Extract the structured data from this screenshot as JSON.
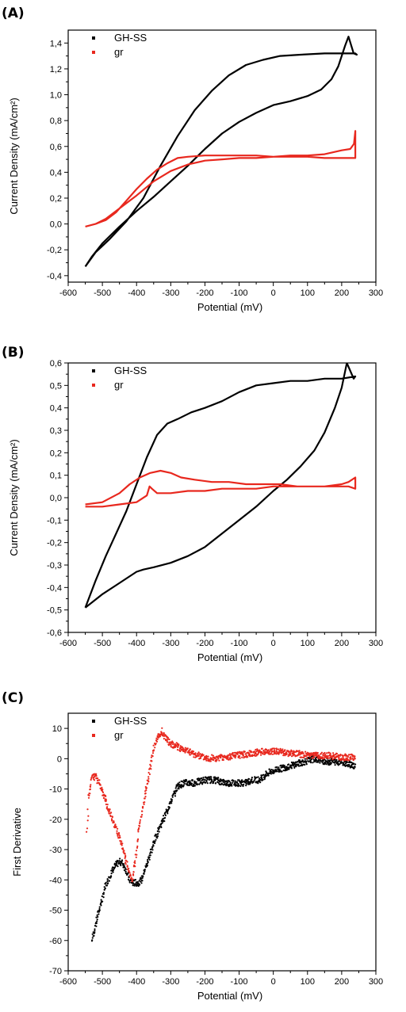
{
  "chart_data": [
    {
      "panel_label": "(A)",
      "type": "line",
      "xlabel": "Potential (mV)",
      "ylabel": "Current Density (mA/cm²)",
      "xlim": [
        -600,
        300
      ],
      "ylim": [
        -0.45,
        1.5
      ],
      "x_ticks": [
        -600,
        -500,
        -400,
        -300,
        -200,
        -100,
        0,
        100,
        200,
        300
      ],
      "y_ticks": [
        -0.4,
        -0.2,
        0.0,
        0.2,
        0.4,
        0.6,
        0.8,
        1.0,
        1.2,
        1.4
      ],
      "y_tick_labels": [
        "-0,4",
        "-0,2",
        "0,0",
        "0,2",
        "0,4",
        "0,6",
        "0,8",
        "1,0",
        "1,2",
        "1,4"
      ],
      "legend_placement": "top-left",
      "series": [
        {
          "name": "GH-SS",
          "color": "#000000",
          "points": [
            [
              -550,
              -0.33
            ],
            [
              -520,
              -0.22
            ],
            [
              -480,
              -0.12
            ],
            [
              -430,
              0.02
            ],
            [
              -380,
              0.2
            ],
            [
              -330,
              0.45
            ],
            [
              -280,
              0.68
            ],
            [
              -230,
              0.88
            ],
            [
              -180,
              1.03
            ],
            [
              -130,
              1.15
            ],
            [
              -80,
              1.23
            ],
            [
              -30,
              1.27
            ],
            [
              20,
              1.3
            ],
            [
              80,
              1.31
            ],
            [
              150,
              1.32
            ],
            [
              200,
              1.32
            ],
            [
              240,
              1.32
            ],
            [
              244,
              1.31
            ],
            [
              235,
              1.32
            ],
            [
              220,
              1.45
            ],
            [
              210,
              1.38
            ],
            [
              190,
              1.22
            ],
            [
              170,
              1.12
            ],
            [
              140,
              1.04
            ],
            [
              100,
              0.99
            ],
            [
              50,
              0.95
            ],
            [
              0,
              0.92
            ],
            [
              -50,
              0.86
            ],
            [
              -100,
              0.79
            ],
            [
              -150,
              0.7
            ],
            [
              -200,
              0.58
            ],
            [
              -250,
              0.45
            ],
            [
              -300,
              0.33
            ],
            [
              -350,
              0.21
            ],
            [
              -400,
              0.1
            ],
            [
              -450,
              -0.02
            ],
            [
              -500,
              -0.15
            ],
            [
              -530,
              -0.25
            ],
            [
              -550,
              -0.33
            ]
          ]
        },
        {
          "name": "gr",
          "color": "#e8281e",
          "points": [
            [
              -550,
              -0.02
            ],
            [
              -520,
              0.0
            ],
            [
              -490,
              0.03
            ],
            [
              -460,
              0.09
            ],
            [
              -430,
              0.18
            ],
            [
              -400,
              0.27
            ],
            [
              -370,
              0.35
            ],
            [
              -340,
              0.42
            ],
            [
              -310,
              0.47
            ],
            [
              -280,
              0.51
            ],
            [
              -250,
              0.52
            ],
            [
              -200,
              0.53
            ],
            [
              -150,
              0.53
            ],
            [
              -100,
              0.53
            ],
            [
              -50,
              0.53
            ],
            [
              0,
              0.52
            ],
            [
              50,
              0.52
            ],
            [
              100,
              0.52
            ],
            [
              150,
              0.51
            ],
            [
              200,
              0.51
            ],
            [
              240,
              0.51
            ],
            [
              240,
              0.72
            ],
            [
              236,
              0.62
            ],
            [
              225,
              0.58
            ],
            [
              200,
              0.57
            ],
            [
              150,
              0.54
            ],
            [
              100,
              0.53
            ],
            [
              50,
              0.53
            ],
            [
              0,
              0.52
            ],
            [
              -50,
              0.51
            ],
            [
              -100,
              0.51
            ],
            [
              -150,
              0.5
            ],
            [
              -200,
              0.49
            ],
            [
              -250,
              0.46
            ],
            [
              -300,
              0.41
            ],
            [
              -350,
              0.33
            ],
            [
              -400,
              0.22
            ],
            [
              -450,
              0.12
            ],
            [
              -490,
              0.04
            ],
            [
              -520,
              0.0
            ],
            [
              -550,
              -0.02
            ]
          ]
        }
      ]
    },
    {
      "panel_label": "(B)",
      "type": "line",
      "xlabel": "Potential (mV)",
      "ylabel": "Current Density (mA/cm²)",
      "xlim": [
        -600,
        300
      ],
      "ylim": [
        -0.6,
        0.6
      ],
      "x_ticks": [
        -600,
        -500,
        -400,
        -300,
        -200,
        -100,
        0,
        100,
        200,
        300
      ],
      "y_ticks": [
        -0.6,
        -0.5,
        -0.4,
        -0.3,
        -0.2,
        -0.1,
        0.0,
        0.1,
        0.2,
        0.3,
        0.4,
        0.5,
        0.6
      ],
      "y_tick_labels": [
        "-0,6",
        "-0,5",
        "-0,4",
        "-0,3",
        "-0,2",
        "-0,1",
        "0,0",
        "0,1",
        "0,2",
        "0,3",
        "0,4",
        "0,5",
        "0,6"
      ],
      "legend_placement": "top-left",
      "series": [
        {
          "name": "GH-SS",
          "color": "#000000",
          "points": [
            [
              -550,
              -0.49
            ],
            [
              -520,
              -0.37
            ],
            [
              -490,
              -0.26
            ],
            [
              -460,
              -0.16
            ],
            [
              -430,
              -0.06
            ],
            [
              -400,
              0.06
            ],
            [
              -370,
              0.18
            ],
            [
              -340,
              0.28
            ],
            [
              -310,
              0.33
            ],
            [
              -280,
              0.35
            ],
            [
              -240,
              0.38
            ],
            [
              -200,
              0.4
            ],
            [
              -150,
              0.43
            ],
            [
              -100,
              0.47
            ],
            [
              -50,
              0.5
            ],
            [
              0,
              0.51
            ],
            [
              50,
              0.52
            ],
            [
              100,
              0.52
            ],
            [
              150,
              0.53
            ],
            [
              200,
              0.53
            ],
            [
              240,
              0.54
            ],
            [
              235,
              0.53
            ],
            [
              215,
              0.6
            ],
            [
              200,
              0.49
            ],
            [
              180,
              0.4
            ],
            [
              150,
              0.29
            ],
            [
              120,
              0.21
            ],
            [
              80,
              0.14
            ],
            [
              40,
              0.08
            ],
            [
              0,
              0.03
            ],
            [
              -50,
              -0.04
            ],
            [
              -100,
              -0.1
            ],
            [
              -150,
              -0.16
            ],
            [
              -200,
              -0.22
            ],
            [
              -250,
              -0.26
            ],
            [
              -300,
              -0.29
            ],
            [
              -350,
              -0.31
            ],
            [
              -380,
              -0.32
            ],
            [
              -400,
              -0.33
            ],
            [
              -430,
              -0.36
            ],
            [
              -460,
              -0.39
            ],
            [
              -500,
              -0.43
            ],
            [
              -550,
              -0.49
            ]
          ]
        },
        {
          "name": "gr",
          "color": "#e8281e",
          "points": [
            [
              -550,
              -0.03
            ],
            [
              -500,
              -0.02
            ],
            [
              -450,
              0.02
            ],
            [
              -420,
              0.06
            ],
            [
              -390,
              0.09
            ],
            [
              -360,
              0.11
            ],
            [
              -330,
              0.12
            ],
            [
              -300,
              0.11
            ],
            [
              -270,
              0.09
            ],
            [
              -230,
              0.08
            ],
            [
              -180,
              0.07
            ],
            [
              -130,
              0.07
            ],
            [
              -80,
              0.06
            ],
            [
              -30,
              0.06
            ],
            [
              20,
              0.06
            ],
            [
              70,
              0.05
            ],
            [
              120,
              0.05
            ],
            [
              170,
              0.05
            ],
            [
              220,
              0.05
            ],
            [
              240,
              0.04
            ],
            [
              240,
              0.09
            ],
            [
              220,
              0.07
            ],
            [
              200,
              0.06
            ],
            [
              150,
              0.05
            ],
            [
              100,
              0.05
            ],
            [
              50,
              0.05
            ],
            [
              0,
              0.05
            ],
            [
              -50,
              0.04
            ],
            [
              -100,
              0.04
            ],
            [
              -150,
              0.04
            ],
            [
              -200,
              0.03
            ],
            [
              -250,
              0.03
            ],
            [
              -300,
              0.02
            ],
            [
              -340,
              0.02
            ],
            [
              -355,
              0.04
            ],
            [
              -362,
              0.05
            ],
            [
              -370,
              0.01
            ],
            [
              -400,
              -0.02
            ],
            [
              -450,
              -0.03
            ],
            [
              -500,
              -0.04
            ],
            [
              -550,
              -0.04
            ]
          ]
        }
      ]
    },
    {
      "panel_label": "(C)",
      "type": "scatter",
      "xlabel": "Potential (mV)",
      "ylabel": "First Derivative",
      "xlim": [
        -600,
        300
      ],
      "ylim": [
        -70,
        15
      ],
      "x_ticks": [
        -600,
        -500,
        -400,
        -300,
        -200,
        -100,
        0,
        100,
        200,
        300
      ],
      "y_ticks": [
        -70,
        -60,
        -50,
        -40,
        -30,
        -20,
        -10,
        0,
        10
      ],
      "y_tick_labels": [
        "-70",
        "-60",
        "-50",
        "-40",
        "-30",
        "-20",
        "-10",
        "0",
        "10"
      ],
      "legend_placement": "top-left",
      "series": [
        {
          "name": "GH-SS",
          "color": "#000000",
          "points": [
            [
              -530,
              -60
            ],
            [
              -520,
              -55
            ],
            [
              -505,
              -48
            ],
            [
              -490,
              -42
            ],
            [
              -475,
              -38
            ],
            [
              -460,
              -35
            ],
            [
              -448,
              -34
            ],
            [
              -440,
              -34.5
            ],
            [
              -430,
              -37
            ],
            [
              -420,
              -40
            ],
            [
              -410,
              -41
            ],
            [
              -395,
              -41
            ],
            [
              -385,
              -40
            ],
            [
              -370,
              -35
            ],
            [
              -350,
              -28
            ],
            [
              -330,
              -22
            ],
            [
              -310,
              -17
            ],
            [
              -295,
              -13
            ],
            [
              -280,
              -9
            ],
            [
              -260,
              -8
            ],
            [
              -230,
              -8
            ],
            [
              -200,
              -7
            ],
            [
              -170,
              -7
            ],
            [
              -140,
              -8
            ],
            [
              -110,
              -8
            ],
            [
              -80,
              -8
            ],
            [
              -60,
              -7
            ],
            [
              -40,
              -7
            ],
            [
              -20,
              -5
            ],
            [
              0,
              -4
            ],
            [
              30,
              -3
            ],
            [
              60,
              -2
            ],
            [
              90,
              -1
            ],
            [
              120,
              0
            ],
            [
              160,
              -1
            ],
            [
              200,
              -1
            ],
            [
              230,
              -2
            ],
            [
              240,
              -3
            ]
          ]
        },
        {
          "name": "gr",
          "color": "#e8281e",
          "points": [
            [
              -545,
              -24
            ],
            [
              -540,
              -12
            ],
            [
              -530,
              -6
            ],
            [
              -520,
              -6
            ],
            [
              -510,
              -8
            ],
            [
              -490,
              -14
            ],
            [
              -470,
              -20
            ],
            [
              -450,
              -26
            ],
            [
              -435,
              -32
            ],
            [
              -420,
              -38
            ],
            [
              -413,
              -40
            ],
            [
              -405,
              -35
            ],
            [
              -395,
              -25
            ],
            [
              -380,
              -15
            ],
            [
              -365,
              -6
            ],
            [
              -350,
              3
            ],
            [
              -340,
              7
            ],
            [
              -325,
              9
            ],
            [
              -315,
              7
            ],
            [
              -300,
              5
            ],
            [
              -280,
              4
            ],
            [
              -260,
              3
            ],
            [
              -230,
              1.5
            ],
            [
              -200,
              0.5
            ],
            [
              -170,
              0
            ],
            [
              -140,
              0.5
            ],
            [
              -110,
              1
            ],
            [
              -80,
              1.5
            ],
            [
              -50,
              2
            ],
            [
              -20,
              2.5
            ],
            [
              0,
              2.5
            ],
            [
              40,
              2
            ],
            [
              80,
              1.5
            ],
            [
              120,
              1
            ],
            [
              160,
              1
            ],
            [
              200,
              0.5
            ],
            [
              240,
              0.5
            ]
          ]
        }
      ]
    }
  ]
}
